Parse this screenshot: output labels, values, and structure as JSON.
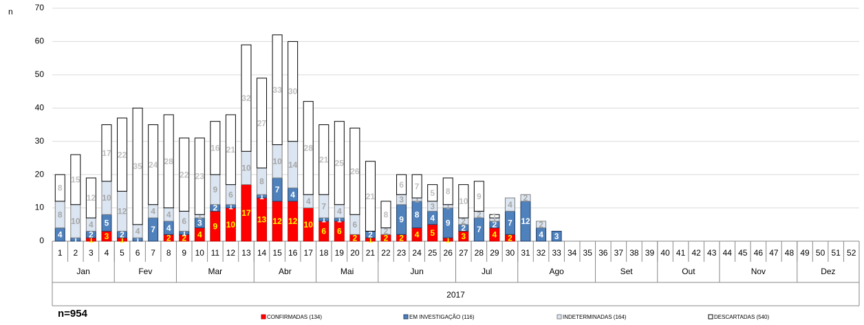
{
  "chart_data": {
    "type": "stacked_bar",
    "y_label": "n",
    "annotation": "n=954",
    "x_group_label": "2017",
    "categories": [
      "1",
      "2",
      "3",
      "4",
      "5",
      "6",
      "7",
      "8",
      "9",
      "10",
      "11",
      "12",
      "13",
      "14",
      "15",
      "16",
      "17",
      "18",
      "19",
      "20",
      "21",
      "22",
      "23",
      "24",
      "25",
      "26",
      "27",
      "28",
      "29",
      "30",
      "31",
      "32",
      "33",
      "34",
      "35",
      "36",
      "37",
      "38",
      "39",
      "40",
      "41",
      "42",
      "43",
      "44",
      "45",
      "46",
      "47",
      "48",
      "49",
      "50",
      "51",
      "52"
    ],
    "groups": [
      {
        "label": "Jan",
        "count": 4
      },
      {
        "label": "Fev",
        "count": 4
      },
      {
        "label": "Mar",
        "count": 5
      },
      {
        "label": "Abr",
        "count": 4
      },
      {
        "label": "Mai",
        "count": 4
      },
      {
        "label": "Jun",
        "count": 5
      },
      {
        "label": "Jul",
        "count": 4
      },
      {
        "label": "Ago",
        "count": 5
      },
      {
        "label": "Set",
        "count": 4
      },
      {
        "label": "Out",
        "count": 4
      },
      {
        "label": "Nov",
        "count": 5
      },
      {
        "label": "Dez",
        "count": 4
      }
    ],
    "series": [
      {
        "name": "CONFIRMADAS (134)",
        "color": "#ff0000",
        "stroke": "#c00000",
        "label_color": "#ffff00",
        "values": [
          0,
          0,
          1,
          3,
          1,
          0,
          0,
          2,
          2,
          4,
          9,
          10,
          17,
          13,
          12,
          12,
          10,
          6,
          6,
          2,
          1,
          2,
          2,
          4,
          5,
          1,
          3,
          0,
          4,
          2,
          0,
          0,
          0,
          0,
          0,
          0,
          0,
          0,
          0,
          0,
          0,
          0,
          0,
          0,
          0,
          0,
          0,
          0,
          0,
          0,
          0,
          0
        ]
      },
      {
        "name": "EM INVESTIGAÇÃO (116)",
        "color": "#4f81bd",
        "stroke": "#1f3d66",
        "label_color": "#ffffff",
        "values": [
          4,
          1,
          2,
          5,
          2,
          1,
          7,
          4,
          1,
          3,
          2,
          1,
          0,
          1,
          7,
          4,
          0,
          1,
          1,
          0,
          2,
          0,
          9,
          8,
          4,
          9,
          2,
          7,
          2,
          7,
          12,
          4,
          3,
          0,
          0,
          0,
          0,
          0,
          0,
          0,
          0,
          0,
          0,
          0,
          0,
          0,
          0,
          0,
          0,
          0,
          0,
          0
        ]
      },
      {
        "name": "INDETERMINADAS (164)",
        "color": "#dce6f2",
        "stroke": "#7f7f7f",
        "label_color": "#a6a6a6",
        "values": [
          8,
          10,
          4,
          10,
          12,
          4,
          4,
          4,
          6,
          1,
          9,
          6,
          10,
          8,
          10,
          14,
          4,
          7,
          4,
          6,
          0,
          2,
          3,
          1,
          3,
          1,
          2,
          2,
          1,
          4,
          2,
          2,
          0,
          0,
          0,
          0,
          0,
          0,
          0,
          0,
          0,
          0,
          0,
          0,
          0,
          0,
          0,
          0,
          0,
          0,
          0,
          0
        ]
      },
      {
        "name": "DESCARTADAS (540)",
        "color": "#ffffff",
        "stroke": "#000000",
        "label_color": "#bfbfbf",
        "values": [
          8,
          15,
          12,
          17,
          22,
          35,
          24,
          28,
          22,
          23,
          16,
          21,
          32,
          27,
          33,
          30,
          28,
          21,
          25,
          26,
          21,
          8,
          6,
          7,
          5,
          8,
          10,
          9,
          1,
          0,
          0,
          0,
          0,
          0,
          0,
          0,
          0,
          0,
          0,
          0,
          0,
          0,
          0,
          0,
          0,
          0,
          0,
          0,
          0,
          0,
          0,
          0
        ]
      }
    ],
    "ylim": [
      0,
      70
    ],
    "yticks": [
      0,
      10,
      20,
      30,
      40,
      50,
      60,
      70
    ],
    "grid": true,
    "legend": "bottom"
  }
}
